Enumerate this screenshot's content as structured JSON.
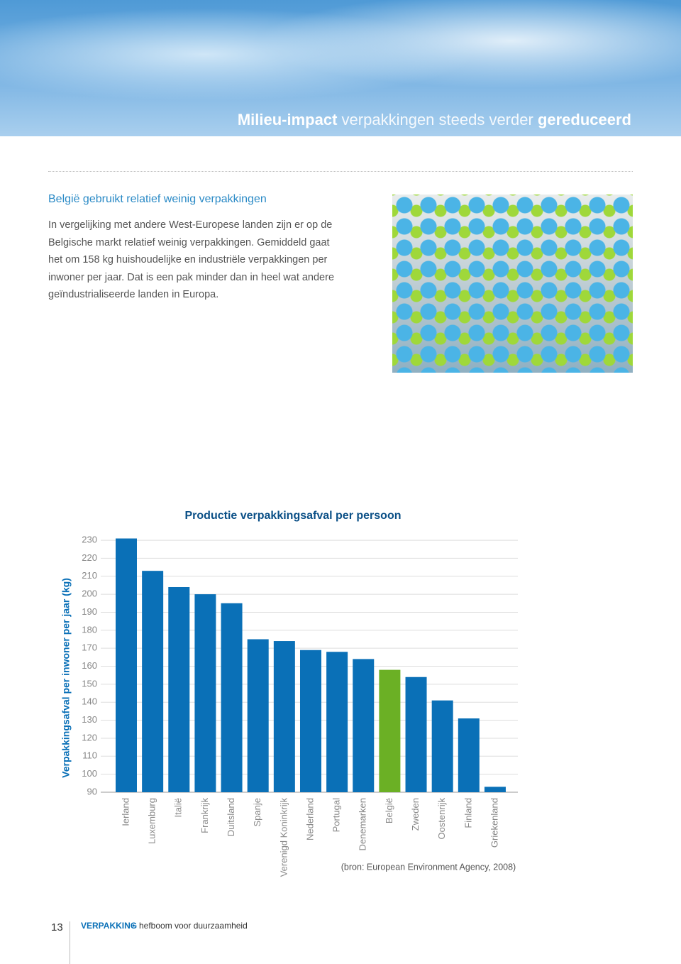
{
  "header": {
    "title_parts": [
      "Milieu-impact",
      "verpakkingen steeds verder",
      "gereduceerd"
    ]
  },
  "section": {
    "heading": "België gebruikt relatief weinig verpakkingen",
    "lines": [
      "In vergelijking met andere West-Europese landen zijn er op de",
      "Belgische markt relatief weinig verpakkingen. Gemiddeld gaat",
      "het om 158 kg huishoudelijke en industriële verpakkingen per",
      "inwoner per jaar. Dat is een pak minder dan in heel wat andere",
      "geïndustrialiseerde landen in Europa."
    ]
  },
  "chart_data": {
    "type": "bar",
    "title": "Productie verpakkingsafval per persoon",
    "y_label": "Verpakkingsafval per inwoner per jaar (kg)",
    "categories": [
      "Ierland",
      "Luxemburg",
      "Italië",
      "Frankrijk",
      "Duitsland",
      "Spanje",
      "Verenigd Koninkrijk",
      "Nederland",
      "Portugal",
      "Denemarken",
      "België",
      "Zweden",
      "Oostenrijk",
      "Finland",
      "Griekenland"
    ],
    "values": [
      231,
      213,
      204,
      200,
      195,
      175,
      174,
      169,
      168,
      164,
      158,
      154,
      141,
      131,
      93
    ],
    "colors": [
      "#0a70b7",
      "#0a70b7",
      "#0a70b7",
      "#0a70b7",
      "#0a70b7",
      "#0a70b7",
      "#0a70b7",
      "#0a70b7",
      "#0a70b7",
      "#0a70b7",
      "#6bb025",
      "#0a70b7",
      "#0a70b7",
      "#0a70b7",
      "#0a70b7"
    ],
    "ylim": [
      90,
      232
    ],
    "yticks": [
      90,
      100,
      110,
      120,
      130,
      140,
      150,
      160,
      170,
      180,
      190,
      200,
      210,
      220,
      230
    ],
    "grid": true,
    "source": "(bron: European Environment Agency, 2008)"
  },
  "footer": {
    "page": "13",
    "section": "VERPAKKING",
    "separator": "•",
    "subtitle": "hefboom voor duurzaamheid"
  }
}
